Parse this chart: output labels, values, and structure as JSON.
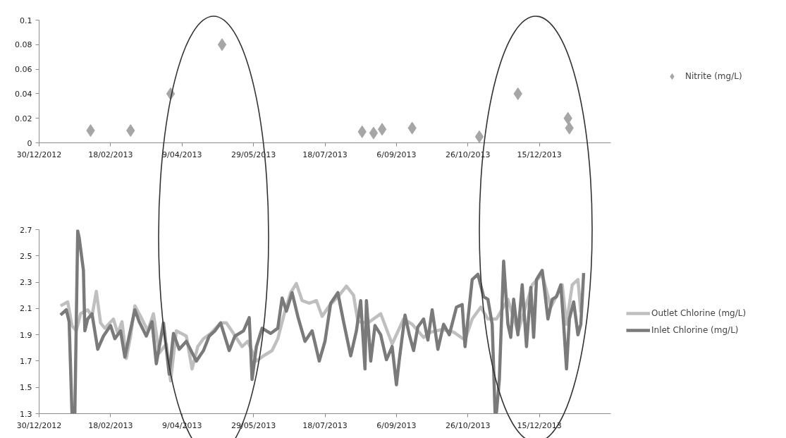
{
  "chart_data": [
    {
      "type": "scatter",
      "marker": "diamond",
      "legend": "right",
      "grid": false,
      "xlim": [
        "2012-12-30",
        "2014-02-03"
      ],
      "xticks": [
        {
          "value": "2012-12-30",
          "label": "30/12/2012"
        },
        {
          "value": "2013-02-18",
          "label": "18/02/2013"
        },
        {
          "value": "2013-04-09",
          "label": "9/04/2013"
        },
        {
          "value": "2013-05-29",
          "label": "29/05/2013"
        },
        {
          "value": "2013-07-18",
          "label": "18/07/2013"
        },
        {
          "value": "2013-09-06",
          "label": "6/09/2013"
        },
        {
          "value": "2013-10-26",
          "label": "26/10/2013"
        },
        {
          "value": "2013-12-15",
          "label": "15/12/2013"
        }
      ],
      "ylim": [
        0,
        0.1
      ],
      "yticks": [
        0,
        0.02,
        0.04,
        0.06,
        0.08,
        0.1
      ],
      "x": [
        "2013-02-04",
        "2013-03-04",
        "2013-04-01",
        "2013-05-07",
        "2013-08-13",
        "2013-08-21",
        "2013-08-27",
        "2013-09-17",
        "2013-11-03",
        "2013-11-30",
        "2014-01-04",
        "2014-01-05"
      ],
      "series": [
        {
          "name": "Nitrite (mg/L)",
          "color": "#a6a6a6",
          "values": [
            0.01,
            0.01,
            0.04,
            0.08,
            0.009,
            0.008,
            0.011,
            0.012,
            0.005,
            0.04,
            0.02,
            0.012
          ]
        }
      ]
    },
    {
      "type": "line",
      "legend": "right",
      "grid": false,
      "line_style": "solid",
      "xlim": [
        "2012-12-30",
        "2014-02-03"
      ],
      "xticks": [
        {
          "value": "2012-12-30",
          "label": "30/12/2012"
        },
        {
          "value": "2013-02-18",
          "label": "18/02/2013"
        },
        {
          "value": "2013-04-09",
          "label": "9/04/2013"
        },
        {
          "value": "2013-05-29",
          "label": "29/05/2013"
        },
        {
          "value": "2013-07-18",
          "label": "18/07/2013"
        },
        {
          "value": "2013-09-06",
          "label": "6/09/2013"
        },
        {
          "value": "2013-10-26",
          "label": "26/10/2013"
        },
        {
          "value": "2013-12-15",
          "label": "15/12/2013"
        }
      ],
      "ylim": [
        1.3,
        2.7
      ],
      "yticks": [
        1.3,
        1.5,
        1.7,
        1.9,
        2.1,
        2.3,
        2.5,
        2.7
      ],
      "series": [
        {
          "name": "Outlet Chlorine (mg/L)",
          "color": "#bfbfbf",
          "x": [
            "2013-01-14",
            "2013-01-19",
            "2013-01-22",
            "2013-01-25",
            "2013-01-28",
            "2013-02-02",
            "2013-02-05",
            "2013-02-08",
            "2013-02-11",
            "2013-02-14",
            "2013-02-20",
            "2013-02-23",
            "2013-02-26",
            "2013-03-01",
            "2013-03-04",
            "2013-03-07",
            "2013-03-11",
            "2013-03-16",
            "2013-03-20",
            "2013-03-24",
            "2013-03-29",
            "2013-04-01",
            "2013-04-05",
            "2013-04-12",
            "2013-04-16",
            "2013-04-20",
            "2013-04-24",
            "2013-04-29",
            "2013-05-06",
            "2013-05-10",
            "2013-05-15",
            "2013-05-21",
            "2013-05-25",
            "2013-05-31",
            "2013-06-05",
            "2013-06-11",
            "2013-06-15",
            "2013-06-20",
            "2013-06-24",
            "2013-06-28",
            "2013-07-02",
            "2013-07-07",
            "2013-07-12",
            "2013-07-16",
            "2013-07-21",
            "2013-07-28",
            "2013-08-02",
            "2013-08-07",
            "2013-08-10",
            "2013-08-17",
            "2013-08-26",
            "2013-09-03",
            "2013-09-11",
            "2013-09-17",
            "2013-09-25",
            "2013-09-30",
            "2013-10-08",
            "2013-10-16",
            "2013-10-24",
            "2013-10-29",
            "2013-11-04",
            "2013-11-09",
            "2013-11-15",
            "2013-11-23",
            "2013-11-30",
            "2013-12-10",
            "2013-12-17",
            "2013-12-23",
            "2013-12-31",
            "2014-01-03",
            "2014-01-07",
            "2014-01-11",
            "2014-01-13"
          ],
          "values": [
            2.12,
            2.15,
            1.97,
            1.93,
            2.06,
            2.09,
            2.04,
            2.23,
            1.99,
            1.95,
            2.02,
            1.91,
            2.0,
            1.72,
            1.89,
            2.12,
            2.04,
            1.93,
            2.06,
            1.76,
            1.83,
            1.55,
            1.93,
            1.89,
            1.64,
            1.81,
            1.87,
            1.91,
            1.99,
            1.99,
            1.91,
            1.81,
            1.85,
            1.7,
            1.74,
            1.78,
            1.87,
            2.08,
            2.22,
            2.29,
            2.16,
            2.14,
            2.16,
            2.04,
            2.12,
            2.2,
            2.27,
            2.2,
            2.0,
            1.99,
            2.06,
            1.83,
            2.02,
            1.98,
            1.88,
            1.92,
            1.94,
            1.92,
            1.86,
            2.02,
            2.11,
            2.02,
            2.02,
            2.17,
            1.92,
            2.28,
            2.36,
            2.11,
            2.28,
            1.98,
            2.28,
            2.32,
            2.07
          ]
        },
        {
          "name": "Inlet Chlorine (mg/L)",
          "color": "#7a7a7a",
          "x": [
            "2013-01-14",
            "2013-01-18",
            "2013-01-20",
            "2013-01-22",
            "2013-01-24",
            "2013-01-26",
            "2013-01-27",
            "2013-01-30",
            "2013-01-31",
            "2013-02-02",
            "2013-02-05",
            "2013-02-09",
            "2013-02-13",
            "2013-02-18",
            "2013-02-21",
            "2013-02-25",
            "2013-02-28",
            "2013-03-03",
            "2013-03-07",
            "2013-03-10",
            "2013-03-15",
            "2013-03-19",
            "2013-03-22",
            "2013-03-27",
            "2013-03-31",
            "2013-04-03",
            "2013-04-07",
            "2013-04-12",
            "2013-04-19",
            "2013-04-24",
            "2013-04-28",
            "2013-05-02",
            "2013-05-06",
            "2013-05-12",
            "2013-05-16",
            "2013-05-22",
            "2013-05-26",
            "2013-05-28",
            "2013-05-31",
            "2013-06-04",
            "2013-06-10",
            "2013-06-15",
            "2013-06-18",
            "2013-06-21",
            "2013-06-25",
            "2013-06-29",
            "2013-07-04",
            "2013-07-09",
            "2013-07-14",
            "2013-07-18",
            "2013-07-22",
            "2013-07-27",
            "2013-07-31",
            "2013-08-05",
            "2013-08-09",
            "2013-08-12",
            "2013-08-15",
            "2013-08-16",
            "2013-08-19",
            "2013-08-22",
            "2013-08-26",
            "2013-08-30",
            "2013-09-03",
            "2013-09-06",
            "2013-09-08",
            "2013-09-12",
            "2013-09-15",
            "2013-09-18",
            "2013-09-21",
            "2013-09-25",
            "2013-09-28",
            "2013-10-01",
            "2013-10-05",
            "2013-10-09",
            "2013-10-13",
            "2013-10-18",
            "2013-10-22",
            "2013-10-24",
            "2013-10-29",
            "2013-11-02",
            "2013-11-06",
            "2013-11-09",
            "2013-11-12",
            "2013-11-14",
            "2013-11-15",
            "2013-11-17",
            "2013-11-20",
            "2013-11-23",
            "2013-11-25",
            "2013-11-27",
            "2013-11-30",
            "2013-12-03",
            "2013-12-06",
            "2013-12-09",
            "2013-12-11",
            "2013-12-13",
            "2013-12-17",
            "2013-12-21",
            "2013-12-24",
            "2013-12-27",
            "2013-12-30",
            "2014-01-01",
            "2014-01-03",
            "2014-01-05",
            "2014-01-08",
            "2014-01-11",
            "2014-01-13",
            "2014-01-15"
          ],
          "values": [
            2.05,
            2.09,
            2.0,
            1.3,
            1.3,
            2.69,
            2.64,
            2.39,
            1.93,
            2.02,
            2.06,
            1.79,
            1.89,
            1.97,
            1.87,
            1.93,
            1.73,
            1.89,
            2.09,
            2.0,
            1.89,
            2.0,
            1.68,
            1.99,
            1.6,
            1.91,
            1.79,
            1.85,
            1.7,
            1.78,
            1.89,
            1.93,
            1.99,
            1.78,
            1.89,
            1.93,
            2.03,
            1.56,
            1.81,
            1.95,
            1.91,
            1.95,
            2.18,
            2.08,
            2.22,
            2.04,
            1.85,
            1.93,
            1.7,
            1.85,
            2.14,
            2.22,
            2.0,
            1.74,
            1.93,
            2.16,
            1.64,
            2.16,
            1.7,
            1.97,
            1.9,
            1.71,
            1.81,
            1.52,
            1.71,
            2.05,
            1.9,
            1.78,
            1.96,
            2.02,
            1.86,
            2.09,
            1.79,
            1.98,
            1.9,
            2.11,
            2.13,
            1.81,
            2.32,
            2.36,
            2.19,
            2.17,
            1.98,
            1.31,
            1.31,
            1.56,
            2.46,
            1.98,
            1.88,
            2.17,
            1.9,
            2.28,
            1.81,
            2.26,
            1.88,
            2.32,
            2.39,
            2.02,
            2.17,
            2.19,
            2.28,
            1.98,
            1.64,
            2.02,
            2.15,
            1.9,
            1.98,
            2.37
          ]
        }
      ]
    }
  ]
}
